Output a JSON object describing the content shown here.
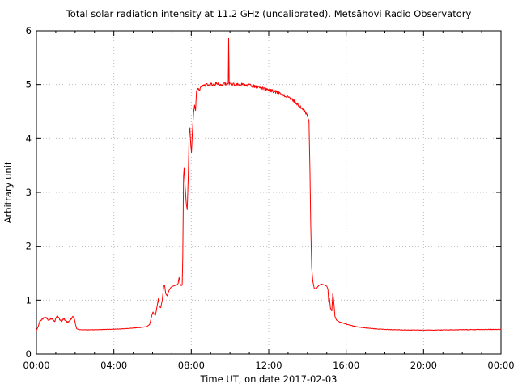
{
  "chart_data": {
    "type": "line",
    "title": "Total solar radiation intensity at 11.2 GHz (uncalibrated). Metsähovi Radio Observatory",
    "xlabel": "Time UT, on date 2017-02-03",
    "ylabel": "Arbitrary unit",
    "xlim": [
      0,
      24
    ],
    "ylim": [
      0,
      6
    ],
    "grid": true,
    "legend": "none",
    "x_tick_hours": [
      0,
      4,
      8,
      12,
      16,
      20,
      24
    ],
    "x_tick_labels": [
      "00:00",
      "04:00",
      "08:00",
      "12:00",
      "16:00",
      "20:00",
      "00:00"
    ],
    "x_minor_tick_interval_hours": 1,
    "y_tick_values": [
      0,
      1,
      2,
      3,
      4,
      5,
      6
    ],
    "y_tick_labels": [
      "0",
      "1",
      "2",
      "3",
      "4",
      "5",
      "6"
    ],
    "x_grid_hours": [
      4,
      8,
      12,
      16,
      20
    ],
    "y_grid_values": [
      1,
      2,
      3,
      4,
      5
    ],
    "line_color": "#ff0000",
    "grid_color": "#bbbbbb",
    "frame_color": "#000000",
    "series": [
      {
        "name": "solar-radiation-intensity",
        "color": "#ff0000",
        "points": [
          [
            0.0,
            0.44
          ],
          [
            0.08,
            0.5
          ],
          [
            0.17,
            0.6
          ],
          [
            0.3,
            0.65
          ],
          [
            0.45,
            0.68
          ],
          [
            0.55,
            0.66
          ],
          [
            0.65,
            0.62
          ],
          [
            0.75,
            0.66
          ],
          [
            0.85,
            0.64
          ],
          [
            0.95,
            0.61
          ],
          [
            1.03,
            0.69
          ],
          [
            1.1,
            0.7
          ],
          [
            1.2,
            0.64
          ],
          [
            1.3,
            0.61
          ],
          [
            1.4,
            0.65
          ],
          [
            1.5,
            0.63
          ],
          [
            1.6,
            0.59
          ],
          [
            1.7,
            0.61
          ],
          [
            1.8,
            0.65
          ],
          [
            1.88,
            0.7
          ],
          [
            1.96,
            0.66
          ],
          [
            2.02,
            0.55
          ],
          [
            2.08,
            0.47
          ],
          [
            2.2,
            0.455
          ],
          [
            2.5,
            0.45
          ],
          [
            3.0,
            0.452
          ],
          [
            3.5,
            0.456
          ],
          [
            4.0,
            0.462
          ],
          [
            4.5,
            0.47
          ],
          [
            5.0,
            0.482
          ],
          [
            5.4,
            0.495
          ],
          [
            5.7,
            0.51
          ],
          [
            5.85,
            0.55
          ],
          [
            5.95,
            0.7
          ],
          [
            6.02,
            0.78
          ],
          [
            6.08,
            0.74
          ],
          [
            6.15,
            0.72
          ],
          [
            6.25,
            0.92
          ],
          [
            6.3,
            1.03
          ],
          [
            6.35,
            0.88
          ],
          [
            6.42,
            0.86
          ],
          [
            6.5,
            1.0
          ],
          [
            6.57,
            1.25
          ],
          [
            6.62,
            1.28
          ],
          [
            6.68,
            1.12
          ],
          [
            6.75,
            1.08
          ],
          [
            6.85,
            1.18
          ],
          [
            6.95,
            1.24
          ],
          [
            7.05,
            1.26
          ],
          [
            7.15,
            1.27
          ],
          [
            7.25,
            1.28
          ],
          [
            7.32,
            1.31
          ],
          [
            7.37,
            1.42
          ],
          [
            7.42,
            1.31
          ],
          [
            7.48,
            1.27
          ],
          [
            7.53,
            1.28
          ],
          [
            7.56,
            1.8
          ],
          [
            7.6,
            3.3
          ],
          [
            7.63,
            3.45
          ],
          [
            7.68,
            3.12
          ],
          [
            7.74,
            2.8
          ],
          [
            7.79,
            2.68
          ],
          [
            7.84,
            3.25
          ],
          [
            7.89,
            4.08
          ],
          [
            7.93,
            4.2
          ],
          [
            7.97,
            3.9
          ],
          [
            8.01,
            3.74
          ],
          [
            8.06,
            4.15
          ],
          [
            8.12,
            4.48
          ],
          [
            8.17,
            4.62
          ],
          [
            8.22,
            4.52
          ],
          [
            8.27,
            4.88
          ],
          [
            8.33,
            4.93
          ],
          [
            8.42,
            4.9
          ],
          [
            8.55,
            4.96
          ],
          [
            8.7,
            4.99
          ],
          [
            9.0,
            5.0
          ],
          [
            9.3,
            5.01
          ],
          [
            9.6,
            5.0
          ],
          [
            9.9,
            5.01
          ],
          [
            9.91,
            5.03
          ],
          [
            9.93,
            5.87
          ],
          [
            9.96,
            5.02
          ],
          [
            10.3,
            5.0
          ],
          [
            10.6,
            5.0
          ],
          [
            10.9,
            4.99
          ],
          [
            11.2,
            4.97
          ],
          [
            11.5,
            4.95
          ],
          [
            11.8,
            4.92
          ],
          [
            12.1,
            4.89
          ],
          [
            12.4,
            4.86
          ],
          [
            12.7,
            4.82
          ],
          [
            13.0,
            4.77
          ],
          [
            13.3,
            4.7
          ],
          [
            13.6,
            4.6
          ],
          [
            13.85,
            4.5
          ],
          [
            14.0,
            4.42
          ],
          [
            14.08,
            4.32
          ],
          [
            14.13,
            3.4
          ],
          [
            14.17,
            2.4
          ],
          [
            14.22,
            1.6
          ],
          [
            14.28,
            1.35
          ],
          [
            14.35,
            1.22
          ],
          [
            14.45,
            1.21
          ],
          [
            14.58,
            1.27
          ],
          [
            14.72,
            1.3
          ],
          [
            14.88,
            1.28
          ],
          [
            15.0,
            1.26
          ],
          [
            15.06,
            1.2
          ],
          [
            15.1,
            0.96
          ],
          [
            15.14,
            1.03
          ],
          [
            15.19,
            0.85
          ],
          [
            15.26,
            0.8
          ],
          [
            15.31,
            1.13
          ],
          [
            15.36,
            0.98
          ],
          [
            15.42,
            0.7
          ],
          [
            15.5,
            0.63
          ],
          [
            15.65,
            0.6
          ],
          [
            15.85,
            0.575
          ],
          [
            16.1,
            0.545
          ],
          [
            16.5,
            0.51
          ],
          [
            17.0,
            0.485
          ],
          [
            17.5,
            0.468
          ],
          [
            18.0,
            0.458
          ],
          [
            18.5,
            0.452
          ],
          [
            19.0,
            0.448
          ],
          [
            19.5,
            0.446
          ],
          [
            20.0,
            0.445
          ],
          [
            20.5,
            0.446
          ],
          [
            21.0,
            0.448
          ],
          [
            21.5,
            0.45
          ],
          [
            22.0,
            0.452
          ],
          [
            22.5,
            0.454
          ],
          [
            23.0,
            0.456
          ],
          [
            23.5,
            0.458
          ],
          [
            24.0,
            0.46
          ]
        ],
        "noise_regions": [
          {
            "from": 0.1,
            "to": 2.0,
            "amp": 0.013
          },
          {
            "from": 2.2,
            "to": 5.7,
            "amp": 0.004
          },
          {
            "from": 8.35,
            "to": 14.0,
            "amp": 0.028
          },
          {
            "from": 15.6,
            "to": 24.0,
            "amp": 0.005
          }
        ]
      }
    ]
  }
}
